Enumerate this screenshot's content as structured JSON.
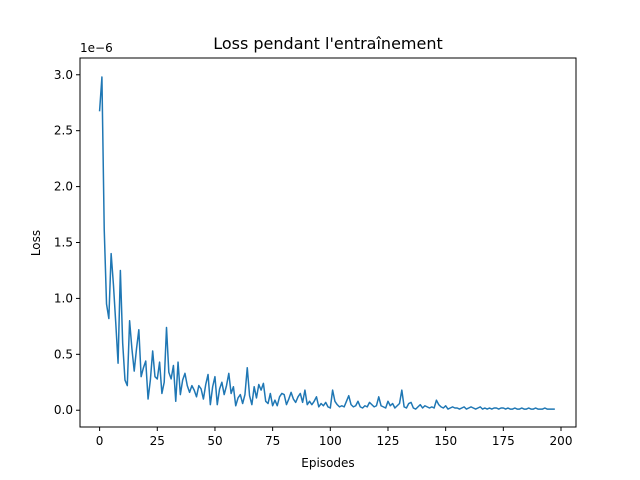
{
  "chart_data": {
    "type": "line",
    "title": "Loss pendant l'entraînement",
    "xlabel": "Episodes",
    "ylabel": "Loss",
    "y_offset_label": "1e−6",
    "y_multiplier": 1e-06,
    "xlim": [
      -8.5,
      206.5
    ],
    "ylim": [
      -0.15,
      3.15
    ],
    "x_ticks": [
      {
        "value": 0,
        "label": "0"
      },
      {
        "value": 25,
        "label": "25"
      },
      {
        "value": 50,
        "label": "50"
      },
      {
        "value": 75,
        "label": "75"
      },
      {
        "value": 100,
        "label": "100"
      },
      {
        "value": 125,
        "label": "125"
      },
      {
        "value": 150,
        "label": "150"
      },
      {
        "value": 175,
        "label": "175"
      },
      {
        "value": 200,
        "label": "200"
      }
    ],
    "y_ticks": [
      {
        "value": 0.0,
        "label": "0.0"
      },
      {
        "value": 0.5,
        "label": "0.5"
      },
      {
        "value": 1.0,
        "label": "1.0"
      },
      {
        "value": 1.5,
        "label": "1.5"
      },
      {
        "value": 2.0,
        "label": "2.0"
      },
      {
        "value": 2.5,
        "label": "2.5"
      },
      {
        "value": 3.0,
        "label": "3.0"
      }
    ],
    "grid": false,
    "legend": "none",
    "series": [
      {
        "color": "#1f77b4",
        "values": [
          2.68,
          2.98,
          1.62,
          0.95,
          0.82,
          1.4,
          1.12,
          0.78,
          0.42,
          1.25,
          0.6,
          0.27,
          0.22,
          0.8,
          0.55,
          0.35,
          0.55,
          0.72,
          0.3,
          0.38,
          0.44,
          0.1,
          0.27,
          0.53,
          0.3,
          0.28,
          0.43,
          0.15,
          0.25,
          0.74,
          0.34,
          0.28,
          0.4,
          0.08,
          0.43,
          0.14,
          0.27,
          0.33,
          0.22,
          0.16,
          0.22,
          0.18,
          0.12,
          0.22,
          0.19,
          0.1,
          0.23,
          0.32,
          0.05,
          0.21,
          0.3,
          0.05,
          0.19,
          0.25,
          0.14,
          0.22,
          0.33,
          0.15,
          0.21,
          0.04,
          0.11,
          0.14,
          0.06,
          0.14,
          0.38,
          0.13,
          0.05,
          0.21,
          0.11,
          0.23,
          0.18,
          0.24,
          0.08,
          0.06,
          0.15,
          0.04,
          0.09,
          0.04,
          0.12,
          0.15,
          0.14,
          0.05,
          0.1,
          0.16,
          0.1,
          0.07,
          0.12,
          0.15,
          0.07,
          0.18,
          0.05,
          0.08,
          0.05,
          0.08,
          0.12,
          0.03,
          0.06,
          0.04,
          0.07,
          0.03,
          0.02,
          0.18,
          0.08,
          0.05,
          0.03,
          0.04,
          0.03,
          0.08,
          0.13,
          0.05,
          0.03,
          0.04,
          0.08,
          0.03,
          0.02,
          0.04,
          0.03,
          0.07,
          0.05,
          0.03,
          0.04,
          0.12,
          0.04,
          0.03,
          0.02,
          0.08,
          0.04,
          0.06,
          0.02,
          0.04,
          0.06,
          0.18,
          0.03,
          0.02,
          0.06,
          0.07,
          0.02,
          0.01,
          0.03,
          0.05,
          0.02,
          0.04,
          0.03,
          0.02,
          0.03,
          0.02,
          0.09,
          0.05,
          0.03,
          0.02,
          0.04,
          0.01,
          0.02,
          0.03,
          0.02,
          0.02,
          0.01,
          0.02,
          0.03,
          0.01,
          0.02,
          0.03,
          0.02,
          0.01,
          0.02,
          0.03,
          0.01,
          0.02,
          0.01,
          0.02,
          0.01,
          0.02,
          0.02,
          0.01,
          0.02,
          0.02,
          0.01,
          0.02,
          0.01,
          0.01,
          0.02,
          0.01,
          0.01,
          0.02,
          0.01,
          0.01,
          0.02,
          0.01,
          0.01,
          0.02,
          0.01,
          0.01,
          0.01,
          0.02,
          0.01,
          0.01,
          0.01,
          0.01
        ]
      }
    ]
  }
}
